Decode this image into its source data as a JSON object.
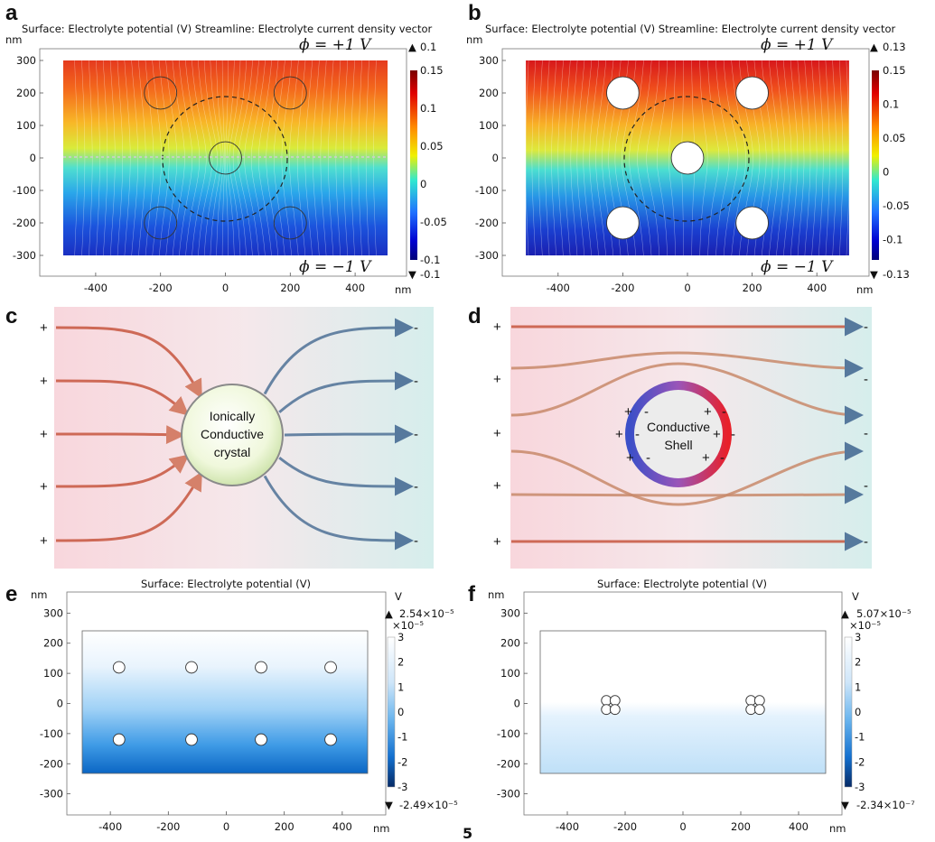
{
  "panel_labels": {
    "a": "a",
    "b": "b",
    "c": "c",
    "d": "d",
    "e": "e",
    "f": "f"
  },
  "top_title": "Surface: Electrolyte potential (V)  Streamline: Electrolyte current density vector",
  "bottom_title": "Surface: Electrolyte potential (V)",
  "unit_nm": "nm",
  "unit_V": "V",
  "phi_top": "ϕ = +1 V",
  "phi_bottom": "ϕ = −1 V",
  "colors": {
    "red": "#b40d12",
    "blue": "#3b6089",
    "crystal_fill": "#eef7d6"
  },
  "chart_data": [
    {
      "id": "a",
      "type": "heatmap",
      "title": "Surface: Electrolyte potential (V)  Streamline: Electrolyte current density vector",
      "x_ticks": [
        "-400",
        "-200",
        "0",
        "200",
        "400"
      ],
      "y_ticks": [
        "300",
        "200",
        "100",
        "0",
        "-100",
        "-200",
        "-300"
      ],
      "xlim": [
        -500,
        500
      ],
      "ylim": [
        -300,
        300
      ],
      "colorbar_ticks": [
        "0.15",
        "0.1",
        "0.05",
        "0",
        "-0.05",
        "-0.1"
      ],
      "clim": [
        -0.1,
        0.15
      ],
      "max_label": "0.1",
      "min_label": "-0.1",
      "particles": [
        [
          -200,
          200
        ],
        [
          200,
          200
        ],
        [
          0,
          0
        ],
        [
          -200,
          -200
        ],
        [
          200,
          -200
        ]
      ],
      "particle_radius": 50,
      "dashed_circle": {
        "cx": 0,
        "cy": 10,
        "r": 190
      },
      "hollow": false
    },
    {
      "id": "b",
      "type": "heatmap",
      "title": "Surface: Electrolyte potential (V)  Streamline: Electrolyte current density vector",
      "x_ticks": [
        "-400",
        "-200",
        "0",
        "200",
        "400"
      ],
      "y_ticks": [
        "300",
        "200",
        "100",
        "0",
        "-100",
        "-200",
        "-300"
      ],
      "xlim": [
        -500,
        500
      ],
      "ylim": [
        -300,
        300
      ],
      "colorbar_ticks": [
        "0.15",
        "0.1",
        "0.05",
        "0",
        "-0.05",
        "-0.1"
      ],
      "clim": [
        -0.13,
        0.15
      ],
      "max_label": "0.13",
      "min_label": "-0.13",
      "particles": [
        [
          -200,
          200
        ],
        [
          200,
          200
        ],
        [
          0,
          0
        ],
        [
          -200,
          -200
        ],
        [
          200,
          -200
        ]
      ],
      "particle_radius": 50,
      "dashed_circle": {
        "cx": 0,
        "cy": 10,
        "r": 190
      },
      "hollow": true
    },
    {
      "id": "e",
      "type": "heatmap",
      "title": "Surface: Electrolyte potential (V)",
      "x_ticks": [
        "-400",
        "-200",
        "0",
        "200",
        "400"
      ],
      "y_ticks": [
        "300",
        "200",
        "100",
        "0",
        "-100",
        "-200",
        "-300"
      ],
      "xlim": [
        -550,
        550
      ],
      "ylim": [
        -370,
        370
      ],
      "colorbar_ticks": [
        "3",
        "2",
        "1",
        "0",
        "-1",
        "-2",
        "-3"
      ],
      "colorbar_exp": "×10⁻⁵",
      "max_label": "2.54×10⁻⁵",
      "min_label": "-2.49×10⁻⁵",
      "particles": [
        [
          -370,
          120
        ],
        [
          -120,
          120
        ],
        [
          120,
          120
        ],
        [
          360,
          120
        ],
        [
          -370,
          -120
        ],
        [
          -120,
          -120
        ],
        [
          120,
          -120
        ],
        [
          360,
          -120
        ]
      ],
      "particle_radius": 20
    },
    {
      "id": "f",
      "type": "heatmap",
      "title": "Surface: Electrolyte potential (V)",
      "x_ticks": [
        "-400",
        "-200",
        "0",
        "200",
        "400"
      ],
      "y_ticks": [
        "300",
        "200",
        "100",
        "0",
        "-100",
        "-200",
        "-300"
      ],
      "xlim": [
        -550,
        550
      ],
      "ylim": [
        -370,
        370
      ],
      "colorbar_ticks": [
        "3",
        "2",
        "1",
        "0",
        "-1",
        "-2",
        "-3"
      ],
      "colorbar_exp": "×10⁻⁵",
      "max_label": "5.07×10⁻⁵",
      "min_label": "-2.34×10⁻⁷",
      "particles": [
        [
          -265,
          10
        ],
        [
          -235,
          10
        ],
        [
          -265,
          -20
        ],
        [
          -235,
          -20
        ],
        [
          235,
          10
        ],
        [
          265,
          10
        ],
        [
          235,
          -20
        ],
        [
          265,
          -20
        ]
      ],
      "particle_radius": 17
    }
  ],
  "diagram_c": {
    "center_text": [
      "Ionically",
      "Conductive",
      "crystal"
    ],
    "plus": "+",
    "minus": "-"
  },
  "diagram_d": {
    "center_text": [
      "Conductive",
      "Shell"
    ],
    "plus": "+",
    "minus": "-"
  },
  "stray_mark": "5"
}
